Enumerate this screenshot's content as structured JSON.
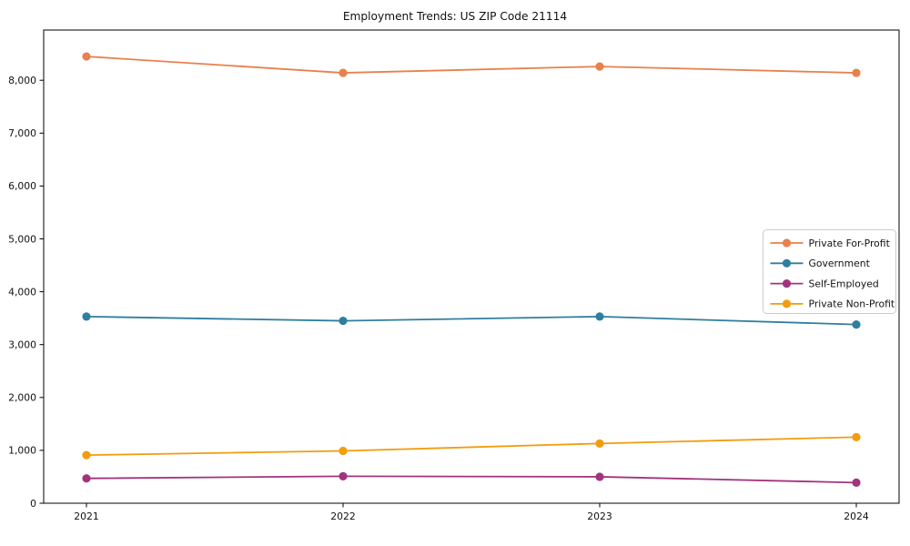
{
  "figure": {
    "title": "Employment Trends: US ZIP Code 21114"
  },
  "chart_data": {
    "type": "line",
    "title": "Employment Trends: US ZIP Code 21114",
    "xlabel": "",
    "ylabel": "",
    "x": [
      2021,
      2022,
      2023,
      2024
    ],
    "x_tick_labels": [
      "2021",
      "2022",
      "2023",
      "2024"
    ],
    "y_ticks": [
      0,
      1000,
      2000,
      3000,
      4000,
      5000,
      6000,
      7000,
      8000
    ],
    "y_tick_labels": [
      "0",
      "1,000",
      "2,000",
      "3,000",
      "4,000",
      "5,000",
      "6,000",
      "7,000",
      "8,000"
    ],
    "ylim": [
      0,
      8950
    ],
    "grid": false,
    "legend_position": "center right",
    "marker": "circle",
    "axis_color": "#000000",
    "legend_border_color": "#cccccc",
    "series": [
      {
        "name": "Private For-Profit",
        "color": "#e8814d",
        "values": [
          8450,
          8140,
          8260,
          8140
        ]
      },
      {
        "name": "Government",
        "color": "#2e7f9f",
        "values": [
          3530,
          3450,
          3530,
          3380
        ]
      },
      {
        "name": "Self-Employed",
        "color": "#a1347e",
        "values": [
          470,
          510,
          500,
          390
        ]
      },
      {
        "name": "Private Non-Profit",
        "color": "#f29c0f",
        "values": [
          910,
          990,
          1130,
          1250
        ]
      }
    ]
  }
}
